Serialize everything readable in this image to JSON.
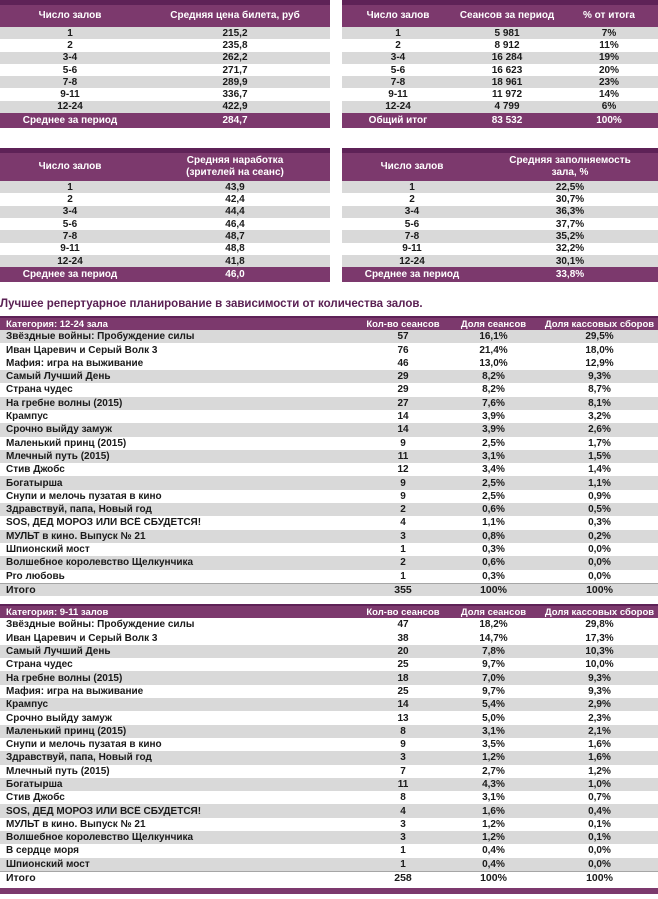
{
  "heading": "Лучшее репертуарное планирование в зависимости от количества залов.",
  "colors": {
    "purple": "#7c396d",
    "dark_purple": "#5e2257",
    "stripe": "#d9d9d9",
    "heading_text": "#5a2153",
    "text": "#1a1a1a"
  },
  "summary_tables": {
    "ticket_price": {
      "columns": [
        "Число залов",
        "Средняя цена билета, руб"
      ],
      "rows": [
        {
          "halls": "1",
          "value": "215,2",
          "shaded": true
        },
        {
          "halls": "2",
          "value": "235,8",
          "shaded": false
        },
        {
          "halls": "3-4",
          "value": "262,2",
          "shaded": true
        },
        {
          "halls": "5-6",
          "value": "271,7",
          "shaded": false
        },
        {
          "halls": "7-8",
          "value": "289,9",
          "shaded": true
        },
        {
          "halls": "9-11",
          "value": "336,7",
          "shaded": false
        },
        {
          "halls": "12-24",
          "value": "422,9",
          "shaded": true
        }
      ],
      "footer": {
        "label": "Среднее за период",
        "value": "284,7"
      }
    },
    "sessions": {
      "columns": [
        "Число залов",
        "Сеансов за период",
        "% от итога"
      ],
      "rows": [
        {
          "halls": "1",
          "value": "5 981",
          "pct": "7%",
          "shaded": true
        },
        {
          "halls": "2",
          "value": "8 912",
          "pct": "11%",
          "shaded": false
        },
        {
          "halls": "3-4",
          "value": "16 284",
          "pct": "19%",
          "shaded": true
        },
        {
          "halls": "5-6",
          "value": "16 623",
          "pct": "20%",
          "shaded": false
        },
        {
          "halls": "7-8",
          "value": "18 961",
          "pct": "23%",
          "shaded": true
        },
        {
          "halls": "9-11",
          "value": "11 972",
          "pct": "14%",
          "shaded": false
        },
        {
          "halls": "12-24",
          "value": "4 799",
          "pct": "6%",
          "shaded": true
        }
      ],
      "footer": {
        "label": "Общий итог",
        "value": "83 532",
        "pct": "100%"
      }
    },
    "attendance": {
      "columns": [
        "Число залов",
        "Средняя наработка\n(зрителей на сеанс)"
      ],
      "rows": [
        {
          "halls": "1",
          "value": "43,9",
          "shaded": true
        },
        {
          "halls": "2",
          "value": "42,4",
          "shaded": false
        },
        {
          "halls": "3-4",
          "value": "44,4",
          "shaded": true
        },
        {
          "halls": "5-6",
          "value": "46,4",
          "shaded": false
        },
        {
          "halls": "7-8",
          "value": "48,7",
          "shaded": true
        },
        {
          "halls": "9-11",
          "value": "48,8",
          "shaded": false
        },
        {
          "halls": "12-24",
          "value": "41,8",
          "shaded": true
        }
      ],
      "footer": {
        "label": "Среднее за период",
        "value": "46,0"
      }
    },
    "occupancy": {
      "columns": [
        "Число залов",
        "Средняя заполняемость\nзала, %"
      ],
      "rows": [
        {
          "halls": "1",
          "value": "22,5%",
          "shaded": true
        },
        {
          "halls": "2",
          "value": "30,7%",
          "shaded": false
        },
        {
          "halls": "3-4",
          "value": "36,3%",
          "shaded": true
        },
        {
          "halls": "5-6",
          "value": "37,7%",
          "shaded": false
        },
        {
          "halls": "7-8",
          "value": "35,2%",
          "shaded": true
        },
        {
          "halls": "9-11",
          "value": "32,2%",
          "shaded": false
        },
        {
          "halls": "12-24",
          "value": "30,1%",
          "shaded": true
        }
      ],
      "footer": {
        "label": "Среднее за период",
        "value": "33,8%"
      }
    }
  },
  "repertoire_tables": [
    {
      "category": "Категория: 12-24 зала",
      "columns": [
        "Кол-во сеансов",
        "Доля сеансов",
        "Доля кассовых сборов"
      ],
      "rows": [
        {
          "title": "Звёздные войны: Пробуждение силы",
          "sessions": "57",
          "share_sessions": "16,1%",
          "share_box": "29,5%",
          "shaded": true
        },
        {
          "title": "Иван Царевич и Серый Волк 3",
          "sessions": "76",
          "share_sessions": "21,4%",
          "share_box": "18,0%",
          "shaded": false
        },
        {
          "title": "Мафия: игра на выживание",
          "sessions": "46",
          "share_sessions": "13,0%",
          "share_box": "12,9%",
          "shaded": false
        },
        {
          "title": "Самый Лучший День",
          "sessions": "29",
          "share_sessions": "8,2%",
          "share_box": "9,3%",
          "shaded": true
        },
        {
          "title": "Страна чудес",
          "sessions": "29",
          "share_sessions": "8,2%",
          "share_box": "8,7%",
          "shaded": false
        },
        {
          "title": "На гребне волны (2015)",
          "sessions": "27",
          "share_sessions": "7,6%",
          "share_box": "8,1%",
          "shaded": true
        },
        {
          "title": "Крампус",
          "sessions": "14",
          "share_sessions": "3,9%",
          "share_box": "3,2%",
          "shaded": false
        },
        {
          "title": "Срочно выйду замуж",
          "sessions": "14",
          "share_sessions": "3,9%",
          "share_box": "2,6%",
          "shaded": true
        },
        {
          "title": "Маленький принц (2015)",
          "sessions": "9",
          "share_sessions": "2,5%",
          "share_box": "1,7%",
          "shaded": false
        },
        {
          "title": "Млечный путь (2015)",
          "sessions": "11",
          "share_sessions": "3,1%",
          "share_box": "1,5%",
          "shaded": true
        },
        {
          "title": "Стив Джобс",
          "sessions": "12",
          "share_sessions": "3,4%",
          "share_box": "1,4%",
          "shaded": false
        },
        {
          "title": "Богатырша",
          "sessions": "9",
          "share_sessions": "2,5%",
          "share_box": "1,1%",
          "shaded": true
        },
        {
          "title": "Снупи и мелочь пузатая в кино",
          "sessions": "9",
          "share_sessions": "2,5%",
          "share_box": "0,9%",
          "shaded": false
        },
        {
          "title": "Здравствуй, папа, Новый год",
          "sessions": "2",
          "share_sessions": "0,6%",
          "share_box": "0,5%",
          "shaded": true
        },
        {
          "title": "SOS, ДЕД МОРОЗ ИЛИ ВСЁ СБУДЕТСЯ!",
          "sessions": "4",
          "share_sessions": "1,1%",
          "share_box": "0,3%",
          "shaded": false
        },
        {
          "title": "МУЛЬТ в кино. Выпуск № 21",
          "sessions": "3",
          "share_sessions": "0,8%",
          "share_box": "0,2%",
          "shaded": true
        },
        {
          "title": "Шпионский мост",
          "sessions": "1",
          "share_sessions": "0,3%",
          "share_box": "0,0%",
          "shaded": false
        },
        {
          "title": "Волшебное королевство Щелкунчика",
          "sessions": "2",
          "share_sessions": "0,6%",
          "share_box": "0,0%",
          "shaded": true
        },
        {
          "title": "Pro любовь",
          "sessions": "1",
          "share_sessions": "0,3%",
          "share_box": "0,0%",
          "shaded": false
        }
      ],
      "total": {
        "label": "Итого",
        "sessions": "355",
        "share_sessions": "100%",
        "share_box": "100%"
      }
    },
    {
      "category": "Категория: 9-11 залов",
      "columns": [
        "Кол-во сеансов",
        "Доля сеансов",
        "Доля кассовых сборов"
      ],
      "rows": [
        {
          "title": "Звёздные войны: Пробуждение силы",
          "sessions": "47",
          "share_sessions": "18,2%",
          "share_box": "29,8%",
          "shaded": false
        },
        {
          "title": "Иван Царевич и Серый Волк 3",
          "sessions": "38",
          "share_sessions": "14,7%",
          "share_box": "17,3%",
          "shaded": false
        },
        {
          "title": "Самый Лучший День",
          "sessions": "20",
          "share_sessions": "7,8%",
          "share_box": "10,3%",
          "shaded": true
        },
        {
          "title": "Страна чудес",
          "sessions": "25",
          "share_sessions": "9,7%",
          "share_box": "10,0%",
          "shaded": false
        },
        {
          "title": "На гребне волны (2015)",
          "sessions": "18",
          "share_sessions": "7,0%",
          "share_box": "9,3%",
          "shaded": true
        },
        {
          "title": "Мафия: игра на выживание",
          "sessions": "25",
          "share_sessions": "9,7%",
          "share_box": "9,3%",
          "shaded": false
        },
        {
          "title": "Крампус",
          "sessions": "14",
          "share_sessions": "5,4%",
          "share_box": "2,9%",
          "shaded": true
        },
        {
          "title": "Срочно выйду замуж",
          "sessions": "13",
          "share_sessions": "5,0%",
          "share_box": "2,3%",
          "shaded": false
        },
        {
          "title": "Маленький принц (2015)",
          "sessions": "8",
          "share_sessions": "3,1%",
          "share_box": "2,1%",
          "shaded": true
        },
        {
          "title": "Снупи и мелочь пузатая в кино",
          "sessions": "9",
          "share_sessions": "3,5%",
          "share_box": "1,6%",
          "shaded": false
        },
        {
          "title": "Здравствуй, папа, Новый год",
          "sessions": "3",
          "share_sessions": "1,2%",
          "share_box": "1,6%",
          "shaded": true
        },
        {
          "title": "Млечный путь (2015)",
          "sessions": "7",
          "share_sessions": "2,7%",
          "share_box": "1,2%",
          "shaded": false
        },
        {
          "title": "Богатырша",
          "sessions": "11",
          "share_sessions": "4,3%",
          "share_box": "1,0%",
          "shaded": true
        },
        {
          "title": "Стив Джобс",
          "sessions": "8",
          "share_sessions": "3,1%",
          "share_box": "0,7%",
          "shaded": false
        },
        {
          "title": "SOS, ДЕД МОРОЗ ИЛИ ВСЁ СБУДЕТСЯ!",
          "sessions": "4",
          "share_sessions": "1,6%",
          "share_box": "0,4%",
          "shaded": true
        },
        {
          "title": "МУЛЬТ в кино. Выпуск № 21",
          "sessions": "3",
          "share_sessions": "1,2%",
          "share_box": "0,1%",
          "shaded": false
        },
        {
          "title": "Волшебное королевство Щелкунчика",
          "sessions": "3",
          "share_sessions": "1,2%",
          "share_box": "0,1%",
          "shaded": true
        },
        {
          "title": "В сердце моря",
          "sessions": "1",
          "share_sessions": "0,4%",
          "share_box": "0,0%",
          "shaded": false
        },
        {
          "title": "Шпионский мост",
          "sessions": "1",
          "share_sessions": "0,4%",
          "share_box": "0,0%",
          "shaded": true
        }
      ],
      "total": {
        "label": "Итого",
        "sessions": "258",
        "share_sessions": "100%",
        "share_box": "100%"
      }
    }
  ]
}
